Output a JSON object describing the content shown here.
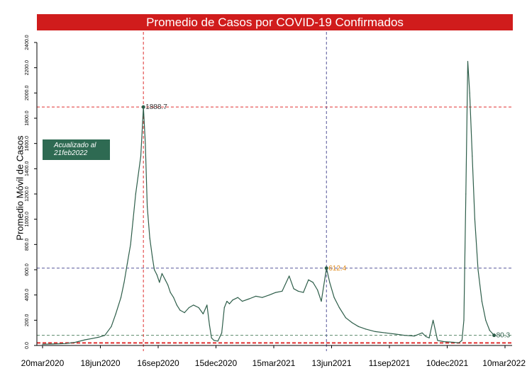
{
  "chart_data": {
    "type": "line",
    "title": "Promedio de Casos por COVID-19 Confirmados",
    "ylabel": "Promedio Móvil de Casos",
    "xlabel": "",
    "ylim": [
      0,
      2400
    ],
    "y_ticks": [
      0,
      200,
      400,
      600,
      800,
      1000,
      1200,
      1400,
      1600,
      1800,
      2000,
      2200,
      2400
    ],
    "y_tick_labels": [
      "0.0",
      "200.0",
      "400.0",
      "600.0",
      "800.0",
      "1000.0",
      "1200.0",
      "1400.0",
      "1600.0",
      "1800.0",
      "2000.0",
      "2200.0",
      "2400.0"
    ],
    "x_ticks": [
      "2020-03-20",
      "2020-06-18",
      "2020-09-16",
      "2020-12-15",
      "2021-03-15",
      "2021-06-13",
      "2021-09-11",
      "2021-12-10",
      "2022-03-10"
    ],
    "x_tick_labels": [
      "20mar2020",
      "18jun2020",
      "16sep2020",
      "15dec2020",
      "15mar2021",
      "13jun2021",
      "11sep2021",
      "10dec2021",
      "10mar2022"
    ],
    "note": {
      "line1": "Acualizado al",
      "line2": "21feb2022"
    },
    "colors": {
      "series": "#2e5e4a",
      "title_bg": "#d01c1c",
      "note_bg": "#2e6a52",
      "red_ref": "#e03030",
      "blue_ref": "#555599",
      "green_ref": "#5a8a6a",
      "peak2_label": "#e08a1a"
    },
    "reference_lines": [
      {
        "orientation": "horizontal",
        "value": 1888.7,
        "color": "red"
      },
      {
        "orientation": "horizontal",
        "value": 612.4,
        "color": "blue"
      },
      {
        "orientation": "horizontal",
        "value": 80.3,
        "color": "green"
      },
      {
        "orientation": "horizontal",
        "value": 20,
        "color": "red",
        "style": "bold-dashed"
      },
      {
        "orientation": "vertical",
        "value": "2020-08-24",
        "color": "red"
      },
      {
        "orientation": "vertical",
        "value": "2021-06-05",
        "color": "blue"
      }
    ],
    "annotations": [
      {
        "x": "2020-08-24",
        "y": 1888.7,
        "text": "1888.7"
      },
      {
        "x": "2021-06-05",
        "y": 612.4,
        "text": "612.4"
      },
      {
        "x": "2022-02-21",
        "y": 80.3,
        "text": "80.3"
      }
    ],
    "series": [
      {
        "x": [
          "2020-03-20",
          "2020-04-05",
          "2020-04-25",
          "2020-05-10",
          "2020-05-25",
          "2020-06-05",
          "2020-06-15",
          "2020-06-25",
          "2020-07-05",
          "2020-07-12",
          "2020-07-20",
          "2020-07-25",
          "2020-07-30",
          "2020-08-04",
          "2020-08-08",
          "2020-08-12",
          "2020-08-16",
          "2020-08-20",
          "2020-08-24",
          "2020-08-27",
          "2020-08-30",
          "2020-09-03",
          "2020-09-07",
          "2020-09-10",
          "2020-09-14",
          "2020-09-18",
          "2020-09-22",
          "2020-09-27",
          "2020-10-01",
          "2020-10-05",
          "2020-10-10",
          "2020-10-15",
          "2020-10-20",
          "2020-10-27",
          "2020-11-03",
          "2020-11-10",
          "2020-11-18",
          "2020-11-25",
          "2020-12-01",
          "2020-12-05",
          "2020-12-08",
          "2020-12-12",
          "2020-12-18",
          "2020-12-24",
          "2020-12-28",
          "2021-01-01",
          "2021-01-05",
          "2021-01-10",
          "2021-01-18",
          "2021-01-25",
          "2021-02-05",
          "2021-02-15",
          "2021-02-25",
          "2021-03-08",
          "2021-03-18",
          "2021-03-28",
          "2021-04-08",
          "2021-04-15",
          "2021-04-22",
          "2021-04-30",
          "2021-05-08",
          "2021-05-15",
          "2021-05-22",
          "2021-05-28",
          "2021-06-05",
          "2021-06-10",
          "2021-06-17",
          "2021-06-25",
          "2021-07-05",
          "2021-07-15",
          "2021-07-25",
          "2021-08-05",
          "2021-08-20",
          "2021-09-05",
          "2021-09-20",
          "2021-10-05",
          "2021-10-20",
          "2021-11-01",
          "2021-11-07",
          "2021-11-12",
          "2021-11-18",
          "2021-11-25",
          "2021-12-05",
          "2021-12-20",
          "2021-12-28",
          "2022-01-02",
          "2022-01-05",
          "2022-01-08",
          "2022-01-11",
          "2022-01-14",
          "2022-01-18",
          "2022-01-22",
          "2022-01-27",
          "2022-02-02",
          "2022-02-08",
          "2022-02-14",
          "2022-02-21"
        ],
        "values": [
          10,
          12,
          15,
          25,
          45,
          55,
          65,
          80,
          150,
          250,
          380,
          500,
          650,
          800,
          1000,
          1200,
          1350,
          1500,
          1888.7,
          1600,
          1100,
          850,
          700,
          600,
          560,
          500,
          570,
          520,
          480,
          420,
          380,
          320,
          280,
          260,
          300,
          320,
          300,
          250,
          320,
          160,
          60,
          40,
          35,
          100,
          300,
          350,
          330,
          360,
          380,
          350,
          370,
          390,
          380,
          400,
          420,
          430,
          550,
          450,
          430,
          420,
          520,
          500,
          440,
          350,
          612.4,
          500,
          380,
          300,
          220,
          180,
          150,
          130,
          110,
          100,
          90,
          80,
          75,
          100,
          70,
          60,
          200,
          40,
          30,
          25,
          20,
          40,
          200,
          1200,
          2250,
          2000,
          1500,
          1000,
          600,
          350,
          200,
          120,
          80.3
        ]
      }
    ]
  }
}
